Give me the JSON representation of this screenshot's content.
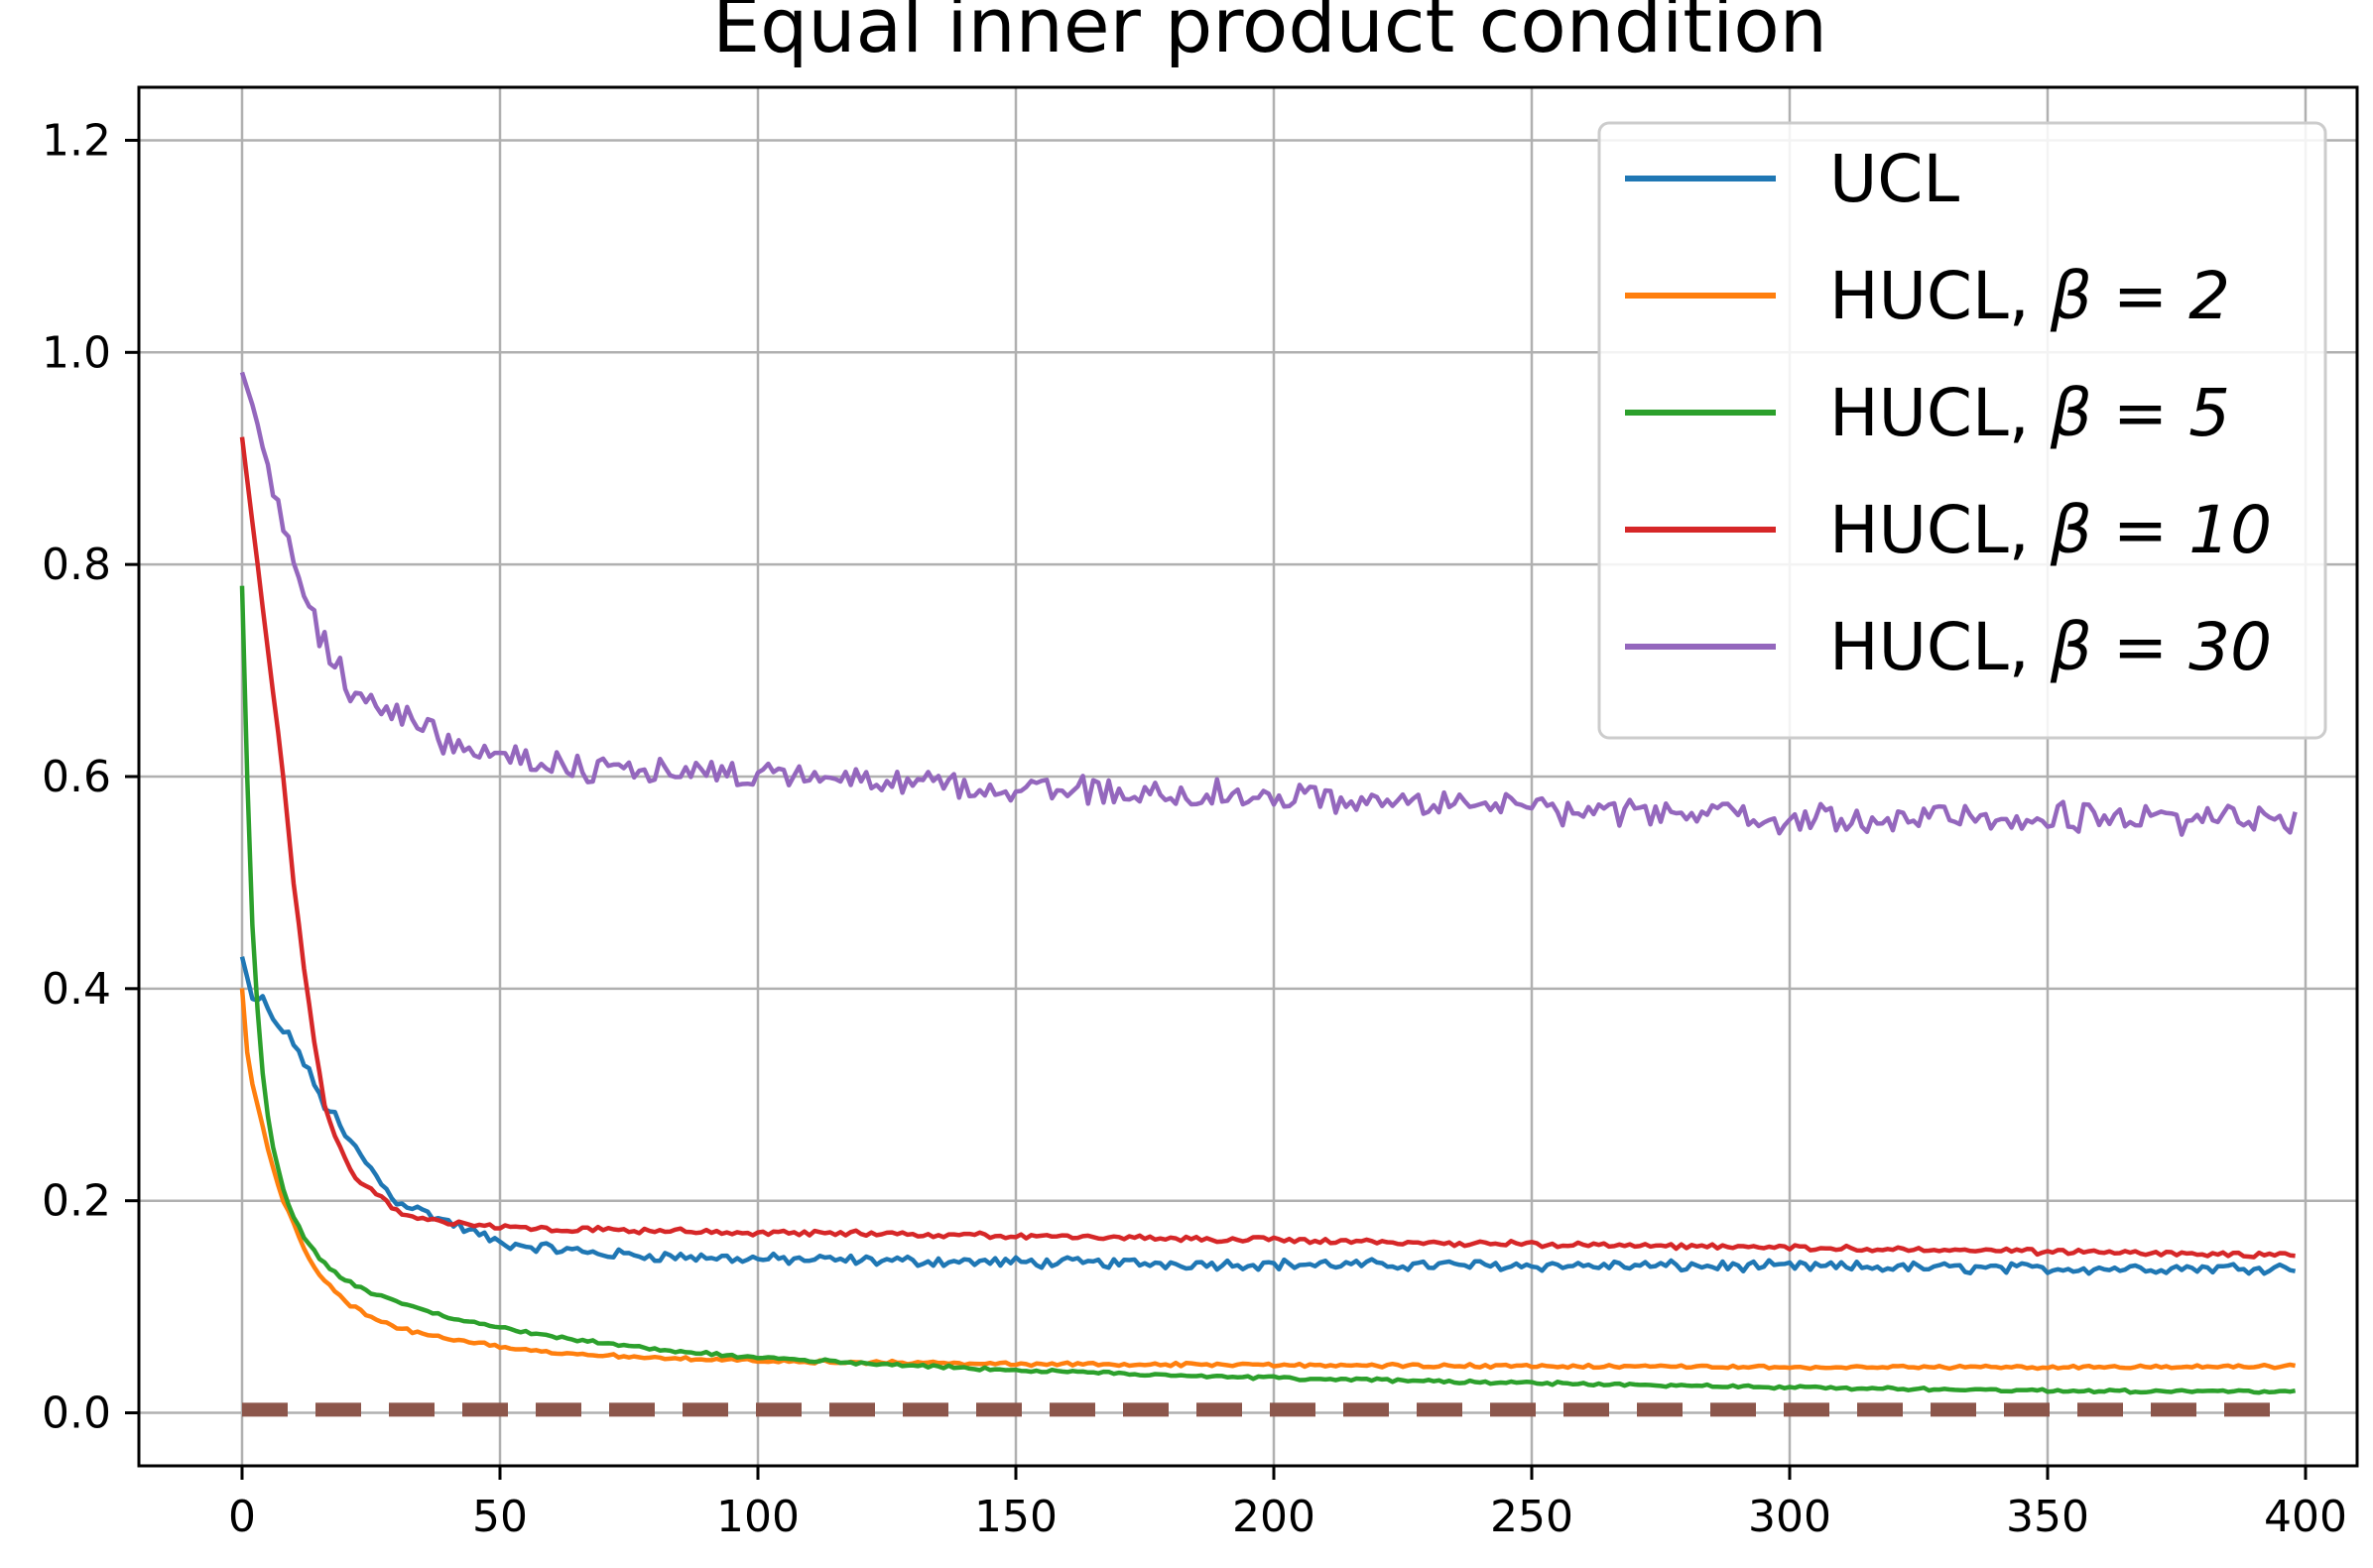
{
  "chart_data": {
    "type": "line",
    "title": "Equal inner product condition",
    "xlabel": "",
    "ylabel": "",
    "xlim": [
      -20,
      410
    ],
    "ylim": [
      -0.05,
      1.25
    ],
    "xticks": [
      0,
      50,
      100,
      150,
      200,
      250,
      300,
      350,
      400
    ],
    "xtick_labels": [
      "0",
      "50",
      "100",
      "150",
      "200",
      "250",
      "300",
      "350",
      "400"
    ],
    "yticks": [
      0.0,
      0.2,
      0.4,
      0.6,
      0.8,
      1.0,
      1.2
    ],
    "ytick_labels": [
      "0.0",
      "0.2",
      "0.4",
      "0.6",
      "0.8",
      "1.0",
      "1.2"
    ],
    "grid": true,
    "legend_position": "top-right",
    "series": [
      {
        "name": "UCL",
        "label_prefix": "UCL",
        "label_math": "",
        "color": "#1f77b4",
        "noise": 0.004,
        "x": [
          0,
          1,
          2,
          4,
          6,
          8,
          10,
          12,
          14,
          16,
          18,
          20,
          22,
          25,
          28,
          30,
          35,
          40,
          45,
          50,
          60,
          70,
          80,
          100,
          150,
          200,
          250,
          300,
          350,
          398
        ],
        "y": [
          0.43,
          0.41,
          0.39,
          0.39,
          0.37,
          0.36,
          0.35,
          0.33,
          0.31,
          0.29,
          0.28,
          0.26,
          0.25,
          0.23,
          0.21,
          0.2,
          0.19,
          0.18,
          0.17,
          0.16,
          0.155,
          0.15,
          0.148,
          0.145,
          0.142,
          0.14,
          0.139,
          0.138,
          0.136,
          0.137
        ]
      },
      {
        "name": "HUCL, β = 2",
        "label_prefix": "HUCL, ",
        "label_math": "β = 2",
        "color": "#ff7f0e",
        "noise": 0.0012,
        "x": [
          0,
          1,
          2,
          4,
          6,
          8,
          10,
          12,
          15,
          20,
          25,
          30,
          40,
          50,
          60,
          80,
          100,
          150,
          200,
          250,
          300,
          350,
          398
        ],
        "y": [
          0.4,
          0.34,
          0.31,
          0.27,
          0.23,
          0.2,
          0.18,
          0.155,
          0.13,
          0.105,
          0.09,
          0.08,
          0.07,
          0.062,
          0.057,
          0.052,
          0.049,
          0.046,
          0.045,
          0.044,
          0.043,
          0.043,
          0.044
        ]
      },
      {
        "name": "HUCL, β = 5",
        "label_prefix": "HUCL, ",
        "label_math": "β = 5",
        "color": "#2ca02c",
        "noise": 0.0012,
        "x": [
          0,
          1,
          2,
          3,
          4,
          5,
          6,
          8,
          10,
          12,
          15,
          20,
          25,
          30,
          40,
          50,
          60,
          80,
          100,
          150,
          200,
          250,
          300,
          350,
          398
        ],
        "y": [
          0.78,
          0.6,
          0.46,
          0.38,
          0.32,
          0.28,
          0.25,
          0.21,
          0.185,
          0.165,
          0.145,
          0.125,
          0.113,
          0.105,
          0.09,
          0.08,
          0.072,
          0.06,
          0.052,
          0.04,
          0.033,
          0.028,
          0.024,
          0.021,
          0.02
        ]
      },
      {
        "name": "HUCL, β = 10",
        "label_prefix": "HUCL, ",
        "label_math": "β = 10",
        "color": "#d62728",
        "noise": 0.002,
        "x": [
          0,
          1,
          2,
          3,
          4,
          6,
          8,
          10,
          12,
          14,
          16,
          18,
          20,
          22,
          25,
          28,
          30,
          35,
          40,
          50,
          60,
          80,
          100,
          150,
          200,
          250,
          300,
          350,
          398
        ],
        "y": [
          0.92,
          0.88,
          0.84,
          0.8,
          0.76,
          0.68,
          0.6,
          0.5,
          0.42,
          0.35,
          0.29,
          0.26,
          0.24,
          0.22,
          0.21,
          0.2,
          0.19,
          0.183,
          0.179,
          0.176,
          0.174,
          0.172,
          0.17,
          0.167,
          0.163,
          0.159,
          0.156,
          0.152,
          0.148
        ]
      },
      {
        "name": "HUCL, β = 30",
        "label_prefix": "HUCL, ",
        "label_math": "β = 30",
        "color": "#9467bd",
        "noise": 0.011,
        "x": [
          0,
          2,
          4,
          6,
          8,
          10,
          12,
          15,
          18,
          20,
          25,
          30,
          35,
          40,
          50,
          60,
          80,
          100,
          150,
          200,
          250,
          300,
          350,
          398
        ],
        "y": [
          0.98,
          0.95,
          0.91,
          0.87,
          0.84,
          0.8,
          0.77,
          0.73,
          0.71,
          0.69,
          0.67,
          0.66,
          0.645,
          0.635,
          0.62,
          0.61,
          0.605,
          0.6,
          0.59,
          0.58,
          0.57,
          0.56,
          0.56,
          0.56
        ]
      },
      {
        "name": "",
        "label_prefix": "",
        "label_math": "",
        "color": "#8c564b",
        "style": "dashed",
        "noise": 0,
        "x": [
          0,
          398
        ],
        "y": [
          0.003,
          0.003
        ]
      }
    ]
  }
}
